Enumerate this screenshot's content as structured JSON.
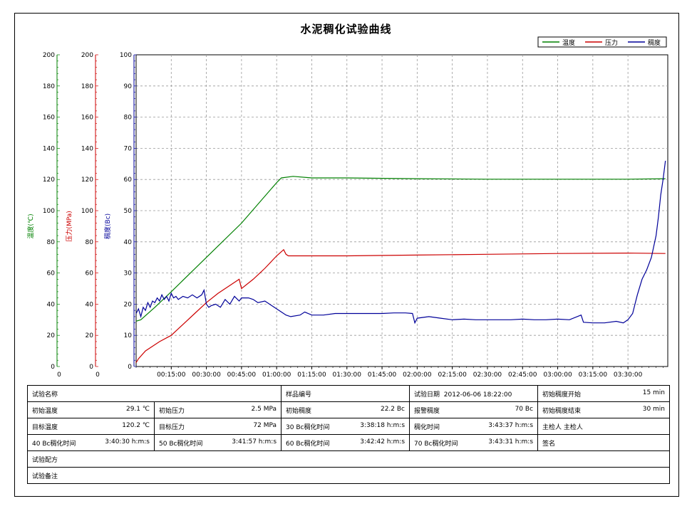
{
  "title": "水泥稠化试验曲线",
  "legend": {
    "position": "top-right",
    "items": [
      {
        "name": "温度",
        "color": "#008000"
      },
      {
        "name": "压力",
        "color": "#cc0000"
      },
      {
        "name": "稠度",
        "color": "#000099"
      }
    ]
  },
  "chart_data": {
    "type": "line",
    "title": "水泥稠化试验曲线",
    "grid": true,
    "xlabel": "",
    "x_ticks": [
      "00:15:00",
      "00:30:00",
      "00:45:00",
      "01:00:00",
      "01:15:00",
      "01:30:00",
      "01:45:00",
      "02:00:00",
      "02:15:00",
      "02:30:00",
      "02:45:00",
      "03:00:00",
      "03:15:00",
      "03:30:00"
    ],
    "x_unit_minutes": [
      15,
      30,
      45,
      60,
      75,
      90,
      105,
      120,
      135,
      150,
      165,
      180,
      195,
      210
    ],
    "xlim_minutes": [
      0,
      227
    ],
    "axes": [
      {
        "name": "温度",
        "label": "温度(℃)",
        "color": "#008000",
        "ylim": [
          0,
          200
        ],
        "ticks": [
          "0",
          "20",
          "40",
          "60",
          "80",
          "100",
          "120",
          "140",
          "160",
          "180",
          "200"
        ],
        "bottom_label": "0"
      },
      {
        "name": "压力",
        "label": "压力(MPa)",
        "color": "#cc0000",
        "ylim": [
          0,
          200
        ],
        "ticks": [
          "0",
          "20",
          "40",
          "60",
          "80",
          "100",
          "120",
          "140",
          "160",
          "180",
          "200"
        ],
        "bottom_label": "0"
      },
      {
        "name": "稠度",
        "label": "稠度(Bc)",
        "color": "#000099",
        "ylim": [
          0,
          100
        ],
        "ticks": [
          "0",
          "10",
          "20",
          "30",
          "40",
          "50",
          "60",
          "70",
          "80",
          "90",
          "100"
        ]
      }
    ],
    "series": [
      {
        "name": "温度",
        "axis": 0,
        "color": "#008000",
        "points": [
          [
            0,
            29.1
          ],
          [
            2,
            30
          ],
          [
            8,
            38
          ],
          [
            15,
            48
          ],
          [
            30,
            70
          ],
          [
            45,
            92
          ],
          [
            60,
            118
          ],
          [
            62,
            121
          ],
          [
            67,
            122
          ],
          [
            75,
            121
          ],
          [
            90,
            121
          ],
          [
            120,
            120.5
          ],
          [
            150,
            120.2
          ],
          [
            180,
            120.2
          ],
          [
            210,
            120.2
          ],
          [
            226,
            120.5
          ]
        ]
      },
      {
        "name": "压力",
        "axis": 0,
        "color": "#cc0000",
        "points": [
          [
            0,
            2.5
          ],
          [
            1,
            5
          ],
          [
            4,
            10
          ],
          [
            10,
            16
          ],
          [
            15,
            20
          ],
          [
            20,
            27
          ],
          [
            25,
            34
          ],
          [
            30,
            41
          ],
          [
            35,
            47
          ],
          [
            40,
            52
          ],
          [
            44,
            56
          ],
          [
            45,
            50
          ],
          [
            50,
            56
          ],
          [
            55,
            63
          ],
          [
            60,
            71
          ],
          [
            63,
            75
          ],
          [
            64,
            72
          ],
          [
            65,
            71
          ],
          [
            75,
            71
          ],
          [
            90,
            71
          ],
          [
            120,
            71.5
          ],
          [
            150,
            72
          ],
          [
            180,
            72.5
          ],
          [
            210,
            72.8
          ],
          [
            226,
            72.5
          ]
        ]
      },
      {
        "name": "稠度",
        "axis": 2,
        "color": "#000099",
        "points": [
          [
            0,
            17
          ],
          [
            1,
            18.5
          ],
          [
            2,
            16
          ],
          [
            3,
            19
          ],
          [
            4,
            18
          ],
          [
            5,
            20.5
          ],
          [
            6,
            19
          ],
          [
            7,
            21
          ],
          [
            8,
            20.5
          ],
          [
            9,
            22
          ],
          [
            10,
            21
          ],
          [
            11,
            23
          ],
          [
            12,
            21.5
          ],
          [
            13,
            22.5
          ],
          [
            14,
            21
          ],
          [
            15,
            23.5
          ],
          [
            16,
            22
          ],
          [
            17,
            22.5
          ],
          [
            18,
            21.5
          ],
          [
            20,
            22.5
          ],
          [
            22,
            22
          ],
          [
            24,
            23
          ],
          [
            26,
            22
          ],
          [
            28,
            23
          ],
          [
            29,
            24.5
          ],
          [
            30,
            20
          ],
          [
            31,
            19
          ],
          [
            32,
            19.5
          ],
          [
            34,
            20
          ],
          [
            36,
            19
          ],
          [
            38,
            21.5
          ],
          [
            40,
            20
          ],
          [
            42,
            22.5
          ],
          [
            44,
            21
          ],
          [
            45,
            22
          ],
          [
            48,
            22
          ],
          [
            50,
            21.5
          ],
          [
            52,
            20.5
          ],
          [
            55,
            21
          ],
          [
            58,
            19.5
          ],
          [
            60,
            18.5
          ],
          [
            62,
            17.5
          ],
          [
            64,
            16.5
          ],
          [
            66,
            16
          ],
          [
            70,
            16.5
          ],
          [
            72,
            17.5
          ],
          [
            75,
            16.5
          ],
          [
            80,
            16.5
          ],
          [
            85,
            17
          ],
          [
            90,
            17
          ],
          [
            95,
            17
          ],
          [
            100,
            17
          ],
          [
            105,
            17
          ],
          [
            110,
            17.2
          ],
          [
            115,
            17.2
          ],
          [
            118,
            17
          ],
          [
            119,
            14
          ],
          [
            120,
            15.5
          ],
          [
            125,
            16
          ],
          [
            130,
            15.5
          ],
          [
            135,
            15
          ],
          [
            140,
            15.2
          ],
          [
            145,
            15
          ],
          [
            150,
            15
          ],
          [
            155,
            15
          ],
          [
            160,
            15
          ],
          [
            165,
            15.2
          ],
          [
            170,
            15
          ],
          [
            175,
            15
          ],
          [
            180,
            15.2
          ],
          [
            185,
            15
          ],
          [
            190,
            16.5
          ],
          [
            191,
            14.2
          ],
          [
            195,
            14
          ],
          [
            200,
            14
          ],
          [
            205,
            14.5
          ],
          [
            208,
            14
          ],
          [
            210,
            15
          ],
          [
            212,
            17
          ],
          [
            214,
            23
          ],
          [
            216,
            28
          ],
          [
            218,
            31
          ],
          [
            220,
            35
          ],
          [
            222,
            42
          ],
          [
            223,
            48
          ],
          [
            224,
            55
          ],
          [
            225,
            60
          ],
          [
            226,
            66
          ]
        ]
      }
    ]
  },
  "info": {
    "test_name_label": "试验名称",
    "test_name_value": "",
    "sample_no_label": "样品编号",
    "sample_no_value": "",
    "test_date_label": "试验日期",
    "test_date_value": "2012-06-06 18:22:00",
    "init_consistency_start_label": "初始稠度开始",
    "init_consistency_start_value": "15 min",
    "init_temp_label": "初始温度",
    "init_temp_value": "29.1 ℃",
    "init_press_label": "初始压力",
    "init_press_value": "2.5 MPa",
    "init_consistency_label": "初始稠度",
    "init_consistency_value": "22.2 Bc",
    "alarm_consistency_label": "报警稠度",
    "alarm_consistency_value": "70 Bc",
    "init_consistency_end_label": "初始稠度结束",
    "init_consistency_end_value": "30 min",
    "target_temp_label": "目标温度",
    "target_temp_value": "120.2 ℃",
    "target_press_label": "目标压力",
    "target_press_value": "72 MPa",
    "bc30_label": "30 Bc稠化时间",
    "bc30_value": "3:38:18 h:m:s",
    "thick_time_label": "稠化时间",
    "thick_time_value": "3:43:37 h:m:s",
    "inspector": "主检人 主检人",
    "bc40_label": "40 Bc稠化时间",
    "bc40_value": "3:40:30 h:m:s",
    "bc50_label": "50 Bc稠化时间",
    "bc50_value": "3:41:57 h:m:s",
    "bc60_label": "60 Bc稠化时间",
    "bc60_value": "3:42:42 h:m:s",
    "bc70_label": "70 Bc稠化时间",
    "bc70_value": "3:43:31 h:m:s",
    "sign_label": "签名",
    "formula_label": "试验配方",
    "formula_value": "",
    "remark_label": "试验备注",
    "remark_value": ""
  }
}
